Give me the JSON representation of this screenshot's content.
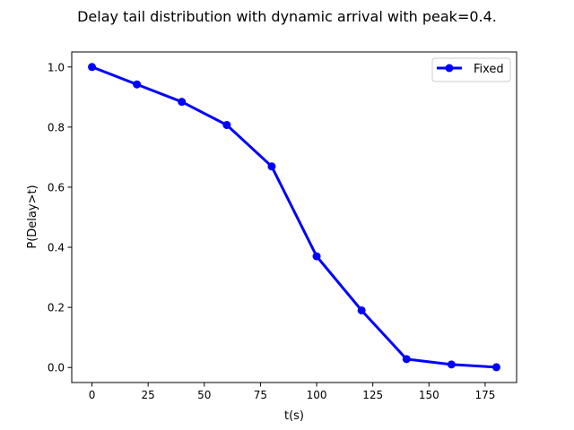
{
  "chart_data": {
    "type": "line",
    "title": "Delay tail distribution with dynamic arrival with peak=0.4.",
    "xlabel": "t(s)",
    "ylabel": "P(Delay>t)",
    "xlim": [
      -9,
      189
    ],
    "ylim": [
      -0.05,
      1.05
    ],
    "xticks": [
      0,
      25,
      50,
      75,
      100,
      125,
      150,
      175
    ],
    "yticks": [
      0.0,
      0.2,
      0.4,
      0.6,
      0.8,
      1.0
    ],
    "xtick_labels": [
      "0",
      "25",
      "50",
      "75",
      "100",
      "125",
      "150",
      "175"
    ],
    "ytick_labels": [
      "0.0",
      "0.2",
      "0.4",
      "0.6",
      "0.8",
      "1.0"
    ],
    "grid": false,
    "legend_position": "upper-right",
    "series": [
      {
        "name": "Fixed",
        "color": "#0000ff",
        "marker": "circle",
        "x": [
          0,
          20,
          40,
          60,
          80,
          100,
          120,
          140,
          160,
          180
        ],
        "y": [
          1.0,
          0.942,
          0.884,
          0.807,
          0.669,
          0.37,
          0.19,
          0.028,
          0.01,
          0.001
        ]
      }
    ]
  }
}
